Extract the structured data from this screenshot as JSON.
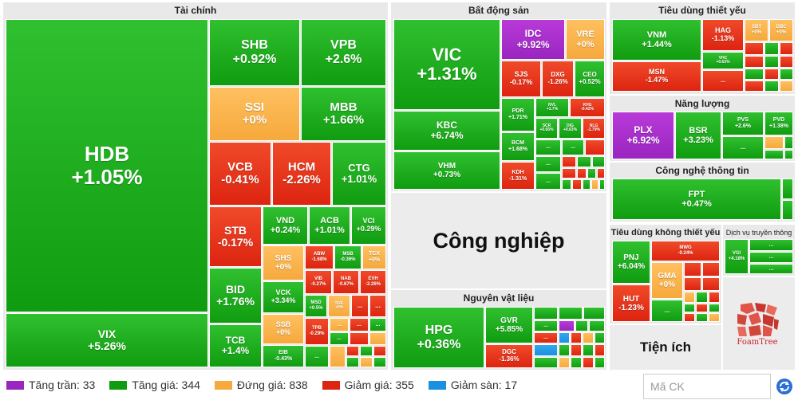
{
  "sections": {
    "tai_chinh": "Tài chính",
    "bat_dong_san": "Bất động sản",
    "tieu_dung_thiet_yeu": "Tiêu dùng thiết yếu",
    "nang_luong": "Năng lượng",
    "cong_nghe": "Công nghệ thông tin",
    "cong_nghiep": "Công nghiệp",
    "nguyen_vat_lieu": "Nguyên vật liệu",
    "tieu_dung_khong": "Tiêu dùng không thiết yếu",
    "dich_vu": "Dịch vụ truyền thông",
    "tien_ich": "Tiện ích"
  },
  "tiles": {
    "HDB": {
      "s": "HDB",
      "v": "+1.05%"
    },
    "VIX": {
      "s": "VIX",
      "v": "+5.26%"
    },
    "SHB": {
      "s": "SHB",
      "v": "+0.92%"
    },
    "VPB": {
      "s": "VPB",
      "v": "+2.6%"
    },
    "SSI": {
      "s": "SSI",
      "v": "+0%"
    },
    "MBB": {
      "s": "MBB",
      "v": "+1.66%"
    },
    "VCB": {
      "s": "VCB",
      "v": "-0.41%"
    },
    "HCM": {
      "s": "HCM",
      "v": "-2.26%"
    },
    "CTG": {
      "s": "CTG",
      "v": "+1.01%"
    },
    "STB": {
      "s": "STB",
      "v": "-0.17%"
    },
    "VND": {
      "s": "VND",
      "v": "+0.24%"
    },
    "ACB": {
      "s": "ACB",
      "v": "+1.01%"
    },
    "VCI": {
      "s": "VCI",
      "v": "+0.29%"
    },
    "BID": {
      "s": "BID",
      "v": "+1.76%"
    },
    "SHS": {
      "s": "SHS",
      "v": "+0%"
    },
    "ABW": {
      "s": "ABW",
      "v": "-1.68%"
    },
    "MSB": {
      "s": "MSB",
      "v": "-0.36%"
    },
    "TCX": {
      "s": "TCX",
      "v": "+0%"
    },
    "VCK": {
      "s": "VCK",
      "v": "+3.34%"
    },
    "VIB": {
      "s": "VIB",
      "v": "-0.27%"
    },
    "NAB": {
      "s": "NAB",
      "v": "-0.67%"
    },
    "EVH": {
      "s": "EVH",
      "v": "-2.26%"
    },
    "TCB": {
      "s": "TCB",
      "v": "+1.4%"
    },
    "SSB": {
      "s": "SSB",
      "v": "+0%"
    },
    "MSD": {
      "s": "MSD",
      "v": "+0.5%"
    },
    "SVE": {
      "s": "SVE",
      "v": "+0%"
    },
    "TPB": {
      "s": "TPB",
      "v": "-0.29%"
    },
    "EIB": {
      "s": "EIB",
      "v": "-0.43%"
    },
    "VIC": {
      "s": "VIC",
      "v": "+1.31%"
    },
    "IDC": {
      "s": "IDC",
      "v": "+9.92%"
    },
    "VRE": {
      "s": "VRE",
      "v": "+0%"
    },
    "SJS": {
      "s": "SJS",
      "v": "-0.17%"
    },
    "DXG": {
      "s": "DXG",
      "v": "-1.26%"
    },
    "CEO": {
      "s": "CEO",
      "v": "+0.52%"
    },
    "KBC": {
      "s": "KBC",
      "v": "+6.74%"
    },
    "PDR": {
      "s": "PDR",
      "v": "+1.71%"
    },
    "NVL": {
      "s": "NVL",
      "v": "+1.7%"
    },
    "KHG": {
      "s": "KHG",
      "v": "-0.42%"
    },
    "VHM": {
      "s": "VHM",
      "v": "+0.73%"
    },
    "BCM": {
      "s": "BCM",
      "v": "+1.68%"
    },
    "SCR": {
      "s": "SCR",
      "v": "+0.65%"
    },
    "DIG": {
      "s": "DIG",
      "v": "+0.63%"
    },
    "NLG": {
      "s": "NLG",
      "v": "-1.79%"
    },
    "KDH": {
      "s": "KDH",
      "v": "-1.31%"
    },
    "VNM": {
      "s": "VNM",
      "v": "+1.44%"
    },
    "HAG": {
      "s": "HAG",
      "v": "-1.13%"
    },
    "SBT": {
      "s": "SBT",
      "v": "+0%"
    },
    "DBC": {
      "s": "DBC",
      "v": "+0%"
    },
    "MSN": {
      "s": "MSN",
      "v": "-1.47%"
    },
    "VHC": {
      "s": "VHC",
      "v": "+0.63%"
    },
    "PLX": {
      "s": "PLX",
      "v": "+6.92%"
    },
    "BSR": {
      "s": "BSR",
      "v": "+3.23%"
    },
    "PVS": {
      "s": "PVS",
      "v": "+2.6%"
    },
    "PVD": {
      "s": "PVD",
      "v": "+1.38%"
    },
    "FPT": {
      "s": "FPT",
      "v": "+0.47%"
    },
    "HPG": {
      "s": "HPG",
      "v": "+0.36%"
    },
    "GVR": {
      "s": "GVR",
      "v": "+5.85%"
    },
    "DGC": {
      "s": "DGC",
      "v": "-1.36%"
    },
    "PNJ": {
      "s": "PNJ",
      "v": "+6.04%"
    },
    "MWG": {
      "s": "MWG",
      "v": "-0.24%"
    },
    "GMA": {
      "s": "GMA",
      "v": "+0%"
    },
    "HUT": {
      "s": "HUT",
      "v": "-1.23%"
    },
    "VGI": {
      "s": "VGI",
      "v": "+4.18%"
    }
  },
  "more": "...",
  "legend": [
    {
      "label": "Tăng trần: 33",
      "color": "#9a25c0"
    },
    {
      "label": "Tăng giá: 344",
      "color": "#109c10"
    },
    {
      "label": "Đứng giá: 838",
      "color": "#f6a93c"
    },
    {
      "label": "Giảm giá: 355",
      "color": "#dd2410"
    },
    {
      "label": "Giảm sàn: 17",
      "color": "#1a90e0"
    }
  ],
  "search": {
    "placeholder": "Mã CK"
  },
  "logo_text": "FoamTree"
}
